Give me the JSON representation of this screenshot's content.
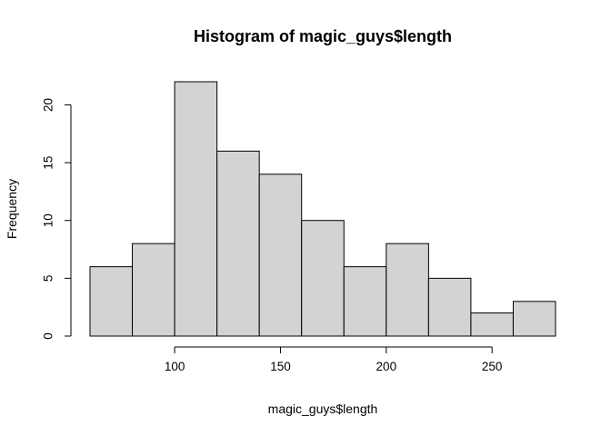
{
  "chart_data": {
    "type": "bar",
    "title": "Histogram of magic_guys$length",
    "xlabel": "magic_guys$length",
    "ylabel": "Frequency",
    "bins": [
      {
        "start": 60,
        "end": 80,
        "count": 6
      },
      {
        "start": 80,
        "end": 100,
        "count": 8
      },
      {
        "start": 100,
        "end": 120,
        "count": 22
      },
      {
        "start": 120,
        "end": 140,
        "count": 16
      },
      {
        "start": 140,
        "end": 160,
        "count": 14
      },
      {
        "start": 160,
        "end": 180,
        "count": 10
      },
      {
        "start": 180,
        "end": 200,
        "count": 6
      },
      {
        "start": 200,
        "end": 220,
        "count": 8
      },
      {
        "start": 220,
        "end": 240,
        "count": 5
      },
      {
        "start": 240,
        "end": 260,
        "count": 2
      },
      {
        "start": 260,
        "end": 280,
        "count": 3
      }
    ],
    "x_ticks": [
      100,
      150,
      200,
      250
    ],
    "y_ticks": [
      0,
      5,
      10,
      15,
      20
    ],
    "xlim": [
      60,
      280
    ],
    "ylim": [
      0,
      22
    ],
    "grid": false,
    "legend": "none"
  }
}
